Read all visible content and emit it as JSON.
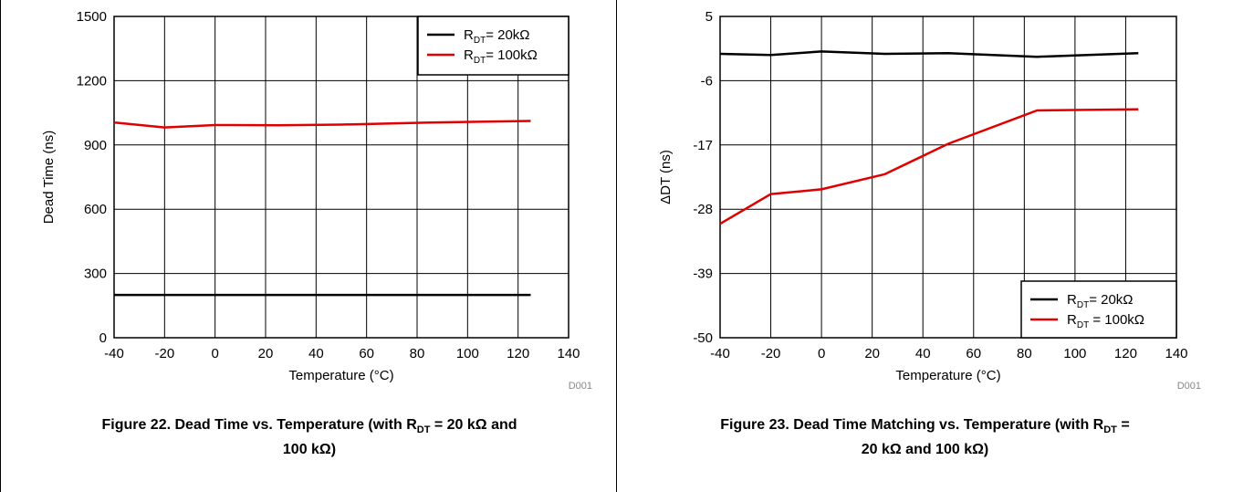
{
  "charts": [
    {
      "id": "fig22",
      "caption": {
        "pre": "Figure 22. Dead Time vs. Temperature (with R",
        "sub": "DT",
        "post1": " = 20 kΩ and",
        "line2": "100 kΩ)"
      },
      "source_id": "D001",
      "colors": {
        "series1": "#000000",
        "series2": "#e00000"
      }
    },
    {
      "id": "fig23",
      "caption": {
        "pre": "Figure 23. Dead Time Matching vs. Temperature (with R",
        "sub": "DT",
        "post1": " =",
        "line2": "20 kΩ and 100 kΩ)"
      },
      "source_id": "D001",
      "colors": {
        "series1": "#000000",
        "series2": "#e00000"
      }
    }
  ],
  "chart_data": [
    {
      "type": "line",
      "xlabel": "Temperature (°C)",
      "ylabel": "Dead Time (ns)",
      "xlim": [
        -40,
        140
      ],
      "ylim": [
        0,
        1500
      ],
      "xticks": [
        -40,
        -20,
        0,
        20,
        40,
        60,
        80,
        100,
        120,
        140
      ],
      "yticks": [
        0,
        300,
        600,
        900,
        1200,
        1500
      ],
      "legend_position": "top-right",
      "series": [
        {
          "name_main": "R",
          "name_sub": "DT",
          "name_rest": "= 20kΩ",
          "x": [
            -40,
            -20,
            0,
            25,
            50,
            85,
            125
          ],
          "y": [
            200,
            200,
            200,
            200,
            200,
            200,
            200
          ]
        },
        {
          "name_main": "R",
          "name_sub": "DT",
          "name_rest": "= 100kΩ",
          "x": [
            -40,
            -20,
            0,
            25,
            50,
            85,
            125
          ],
          "y": [
            1005,
            982,
            993,
            992,
            995,
            1005,
            1012
          ]
        }
      ]
    },
    {
      "type": "line",
      "xlabel": "Temperature (°C)",
      "ylabel": "ΔDT (ns)",
      "xlim": [
        -40,
        140
      ],
      "ylim": [
        -50,
        5
      ],
      "xticks": [
        -40,
        -20,
        0,
        20,
        40,
        60,
        80,
        100,
        120,
        140
      ],
      "yticks": [
        -50,
        -39,
        -28,
        -17,
        -6,
        5
      ],
      "legend_position": "bottom-right",
      "series": [
        {
          "name_main": "R",
          "name_sub": "DT",
          "name_rest": "= 20kΩ",
          "x": [
            -40,
            -20,
            0,
            25,
            50,
            85,
            125
          ],
          "y": [
            -1.4,
            -1.6,
            -1.0,
            -1.4,
            -1.3,
            -1.9,
            -1.3
          ]
        },
        {
          "name_main": "R",
          "name_sub": "DT",
          "name_rest": " = 100kΩ",
          "x": [
            -40,
            -20,
            0,
            25,
            50,
            85,
            125
          ],
          "y": [
            -30.5,
            -25.4,
            -24.6,
            -22.0,
            -16.8,
            -11.1,
            -10.9
          ]
        }
      ]
    }
  ]
}
